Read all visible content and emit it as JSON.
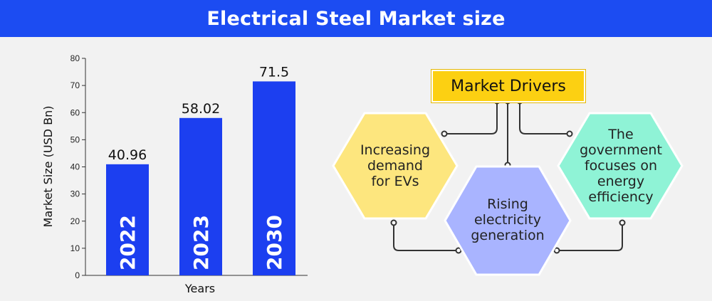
{
  "header": {
    "title": "Electrical Steel Market size"
  },
  "chart_data": {
    "type": "bar",
    "categories": [
      "2022",
      "2023",
      "2030"
    ],
    "values": [
      40.96,
      58.02,
      71.5
    ],
    "value_labels": [
      "40.96",
      "58.02",
      "71.5"
    ],
    "xlabel": "Years",
    "ylabel": "Market Size (USD Bn)",
    "ylim": [
      0,
      80
    ],
    "yticks": [
      0,
      10,
      20,
      30,
      40,
      50,
      60,
      70,
      80
    ],
    "bar_color": "#1c3ff0",
    "grid": false
  },
  "drivers": {
    "title": "Market Drivers",
    "items": [
      {
        "label": "Increasing demand for EVs",
        "color": "#fde67e"
      },
      {
        "label": "Rising electricity generation",
        "color": "#a9b4ff"
      },
      {
        "label": "The government focuses on energy efficiency",
        "color": "#8ff3d6"
      }
    ],
    "accent": "#fcd012"
  }
}
